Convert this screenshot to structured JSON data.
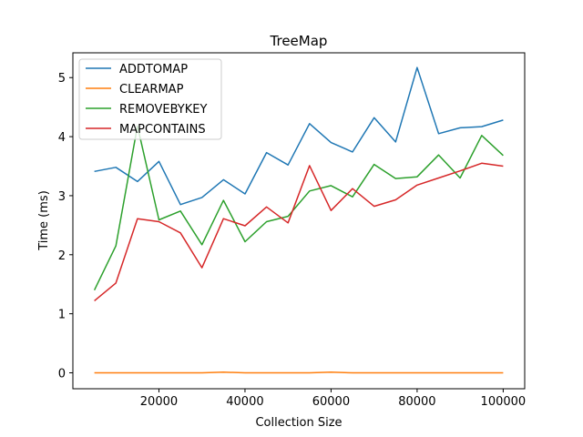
{
  "chart_data": {
    "type": "line",
    "title": "TreeMap",
    "xlabel": "Collection Size",
    "ylabel": "Time (ms)",
    "xlim": [
      0,
      105000
    ],
    "ylim": [
      -0.27,
      5.42
    ],
    "xticks": [
      20000,
      40000,
      60000,
      80000,
      100000
    ],
    "yticks": [
      0,
      1,
      2,
      3,
      4,
      5
    ],
    "grid": false,
    "legend_position": "top-left",
    "x": [
      5000,
      10000,
      15000,
      20000,
      25000,
      30000,
      35000,
      40000,
      45000,
      50000,
      55000,
      60000,
      65000,
      70000,
      75000,
      80000,
      85000,
      90000,
      95000,
      100000
    ],
    "series": [
      {
        "name": "ADDTOMAP",
        "color": "#1f77b4",
        "values": [
          3.41,
          3.48,
          3.24,
          3.58,
          2.85,
          2.97,
          3.27,
          3.03,
          3.73,
          3.52,
          4.22,
          3.9,
          3.74,
          4.32,
          3.91,
          5.17,
          4.05,
          4.15,
          4.17,
          4.28
        ]
      },
      {
        "name": "CLEARMAP",
        "color": "#ff7f0e",
        "values": [
          0.0,
          0.0,
          0.0,
          0.0,
          0.0,
          0.0,
          0.01,
          0.0,
          0.0,
          0.0,
          0.0,
          0.01,
          0.0,
          0.0,
          0.0,
          0.0,
          0.0,
          0.0,
          0.0,
          0.0
        ]
      },
      {
        "name": "REMOVEBYKEY",
        "color": "#2ca02c",
        "values": [
          1.4,
          2.15,
          4.18,
          2.59,
          2.74,
          2.17,
          2.92,
          2.22,
          2.56,
          2.65,
          3.08,
          3.17,
          2.98,
          3.53,
          3.29,
          3.32,
          3.69,
          3.3,
          4.02,
          3.68
        ]
      },
      {
        "name": "MAPCONTAINS",
        "color": "#d62728",
        "values": [
          1.22,
          1.52,
          2.61,
          2.56,
          2.37,
          1.78,
          2.61,
          2.49,
          2.81,
          2.54,
          3.51,
          2.75,
          3.12,
          2.82,
          2.93,
          3.18,
          3.3,
          3.42,
          3.55,
          3.5
        ]
      }
    ]
  }
}
